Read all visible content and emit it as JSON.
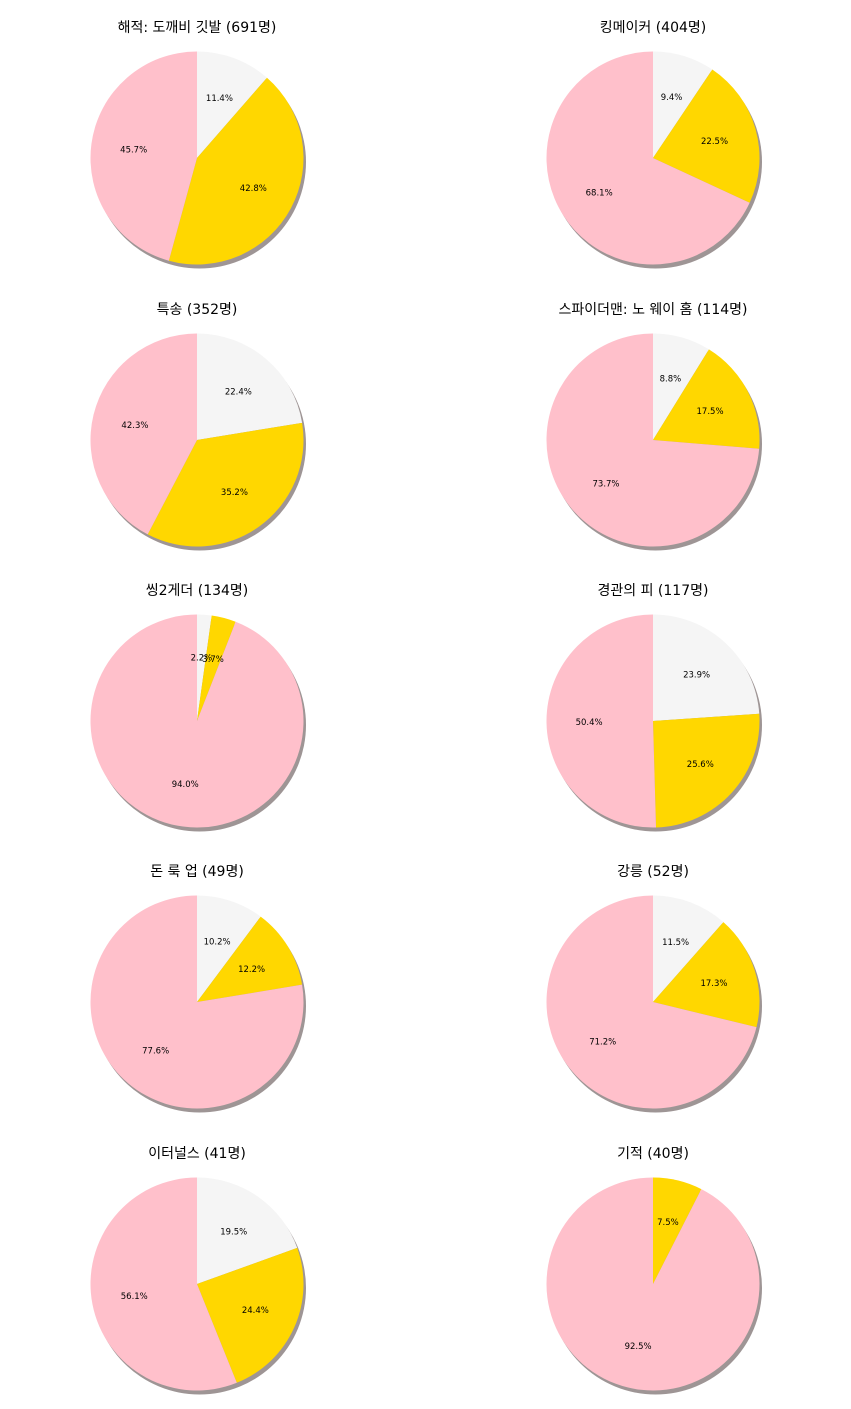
{
  "colors": {
    "white": "#f5f5f5",
    "gold": "#ffd700",
    "pink": "#ffc0cb",
    "shadow": "#9e9595"
  },
  "chart_data": [
    {
      "type": "pie",
      "title": "해적: 도깨비 깃발 (691명)",
      "values": [
        11.4,
        42.8,
        45.7
      ],
      "labels": [
        "11.4%",
        "42.8%",
        "45.7%"
      ]
    },
    {
      "type": "pie",
      "title": "킹메이커 (404명)",
      "values": [
        9.4,
        22.5,
        68.1
      ],
      "labels": [
        "9.4%",
        "22.5%",
        "68.1%"
      ]
    },
    {
      "type": "pie",
      "title": "특송 (352명)",
      "values": [
        22.4,
        35.2,
        42.3
      ],
      "labels": [
        "22.4%",
        "35.2%",
        "42.3%"
      ]
    },
    {
      "type": "pie",
      "title": "스파이더맨: 노 웨이 홈 (114명)",
      "values": [
        8.8,
        17.5,
        73.7
      ],
      "labels": [
        "8.8%",
        "17.5%",
        "73.7%"
      ]
    },
    {
      "type": "pie",
      "title": "씽2게더 (134명)",
      "values": [
        2.2,
        3.7,
        94.0
      ],
      "labels": [
        "2.2%",
        "3.7%",
        "94.0%"
      ]
    },
    {
      "type": "pie",
      "title": "경관의 피 (117명)",
      "values": [
        23.9,
        25.6,
        50.4
      ],
      "labels": [
        "23.9%",
        "25.6%",
        "50.4%"
      ]
    },
    {
      "type": "pie",
      "title": "돈 룩 업 (49명)",
      "values": [
        10.2,
        12.2,
        77.6
      ],
      "labels": [
        "10.2%",
        "12.2%",
        "77.6%"
      ]
    },
    {
      "type": "pie",
      "title": "강릉 (52명)",
      "values": [
        11.5,
        17.3,
        71.2
      ],
      "labels": [
        "11.5%",
        "17.3%",
        "71.2%"
      ]
    },
    {
      "type": "pie",
      "title": "이터널스 (41명)",
      "values": [
        19.5,
        24.4,
        56.1
      ],
      "labels": [
        "19.5%",
        "24.4%",
        "56.1%"
      ]
    },
    {
      "type": "pie",
      "title": "기적 (40명)",
      "values": [
        0,
        7.5,
        92.5
      ],
      "labels": [
        "",
        "7.5%",
        "92.5%"
      ]
    }
  ]
}
